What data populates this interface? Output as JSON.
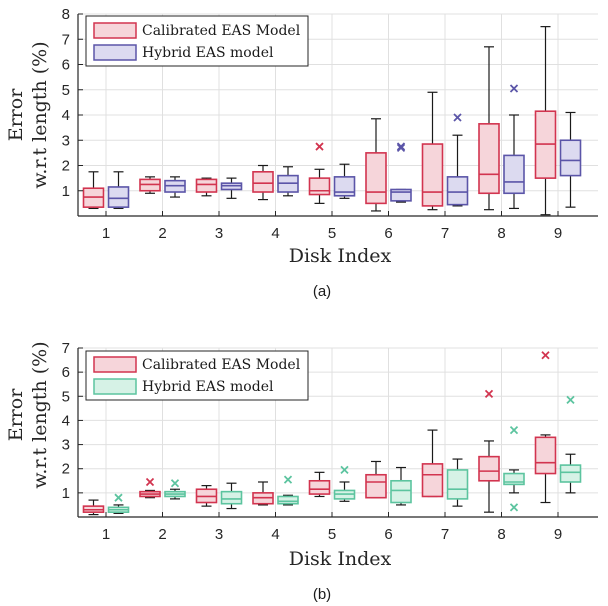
{
  "colors": {
    "calibrated_stroke": "#d2344f",
    "calibrated_fill": "#f6d5da",
    "hybrid_a_stroke": "#5b55a8",
    "hybrid_a_fill": "#dcdaf0",
    "hybrid_b_stroke": "#5cc49f",
    "hybrid_b_fill": "#d6f2e6",
    "whisker": "#1a1a1a",
    "axis": "#262626",
    "grid": "#e0e0e0"
  },
  "chart_data": [
    {
      "type": "box",
      "caption": "(a)",
      "xlabel": "Disk Index",
      "ylabel_line1": "Error",
      "ylabel_line2": "w.r.t length (%)",
      "ylim": [
        0,
        8
      ],
      "yticks": [
        1,
        2,
        3,
        4,
        5,
        6,
        7,
        8
      ],
      "categories": [
        "1",
        "2",
        "3",
        "4",
        "5",
        "6",
        "7",
        "8",
        "9"
      ],
      "grid": true,
      "legend": "top-left",
      "series": [
        {
          "name": "Calibrated EAS Model",
          "color_key": "calibrated",
          "boxes": [
            {
              "min": 0.3,
              "q1": 0.35,
              "median": 0.75,
              "q3": 1.1,
              "max": 1.75,
              "outliers": []
            },
            {
              "min": 0.9,
              "q1": 1.0,
              "median": 1.25,
              "q3": 1.45,
              "max": 1.55,
              "outliers": []
            },
            {
              "min": 0.8,
              "q1": 0.95,
              "median": 1.25,
              "q3": 1.45,
              "max": 1.5,
              "outliers": []
            },
            {
              "min": 0.65,
              "q1": 0.95,
              "median": 1.3,
              "q3": 1.75,
              "max": 2.0,
              "outliers": []
            },
            {
              "min": 0.5,
              "q1": 0.85,
              "median": 1.0,
              "q3": 1.5,
              "max": 1.85,
              "outliers": [
                2.75
              ]
            },
            {
              "min": 0.2,
              "q1": 0.5,
              "median": 0.95,
              "q3": 2.5,
              "max": 3.85,
              "outliers": []
            },
            {
              "min": 0.25,
              "q1": 0.4,
              "median": 0.95,
              "q3": 2.85,
              "max": 4.9,
              "outliers": []
            },
            {
              "min": 0.25,
              "q1": 0.9,
              "median": 1.65,
              "q3": 3.65,
              "max": 6.7,
              "outliers": []
            },
            {
              "min": 0.05,
              "q1": 1.5,
              "median": 2.85,
              "q3": 4.15,
              "max": 7.5,
              "outliers": []
            }
          ]
        },
        {
          "name": "Hybrid EAS model",
          "color_key": "hybrid_a",
          "boxes": [
            {
              "min": 0.3,
              "q1": 0.35,
              "median": 0.7,
              "q3": 1.15,
              "max": 1.75,
              "outliers": []
            },
            {
              "min": 0.75,
              "q1": 0.95,
              "median": 1.2,
              "q3": 1.4,
              "max": 1.55,
              "outliers": []
            },
            {
              "min": 0.7,
              "q1": 1.05,
              "median": 1.2,
              "q3": 1.3,
              "max": 1.5,
              "outliers": []
            },
            {
              "min": 0.8,
              "q1": 0.95,
              "median": 1.3,
              "q3": 1.6,
              "max": 1.95,
              "outliers": []
            },
            {
              "min": 0.7,
              "q1": 0.8,
              "median": 0.95,
              "q3": 1.55,
              "max": 2.05,
              "outliers": []
            },
            {
              "min": 0.55,
              "q1": 0.6,
              "median": 0.95,
              "q3": 1.05,
              "max": 1.05,
              "outliers": [
                2.75,
                2.7
              ]
            },
            {
              "min": 0.4,
              "q1": 0.45,
              "median": 0.95,
              "q3": 1.55,
              "max": 3.2,
              "outliers": [
                3.9
              ]
            },
            {
              "min": 0.3,
              "q1": 0.9,
              "median": 1.35,
              "q3": 2.4,
              "max": 4.0,
              "outliers": [
                5.05
              ]
            },
            {
              "min": 0.35,
              "q1": 1.6,
              "median": 2.2,
              "q3": 3.0,
              "max": 4.1,
              "outliers": []
            }
          ]
        }
      ]
    },
    {
      "type": "box",
      "caption": "(b)",
      "xlabel": "Disk Index",
      "ylabel_line1": "Error",
      "ylabel_line2": "w.r.t length (%)",
      "ylim": [
        0,
        7
      ],
      "yticks": [
        1,
        2,
        3,
        4,
        5,
        6,
        7
      ],
      "categories": [
        "1",
        "2",
        "3",
        "4",
        "5",
        "6",
        "7",
        "8",
        "9"
      ],
      "grid": true,
      "legend": "top-left",
      "series": [
        {
          "name": "Calibrated EAS Model",
          "color_key": "calibrated",
          "boxes": [
            {
              "min": 0.1,
              "q1": 0.2,
              "median": 0.3,
              "q3": 0.45,
              "max": 0.7,
              "outliers": []
            },
            {
              "min": 0.8,
              "q1": 0.85,
              "median": 0.95,
              "q3": 1.05,
              "max": 1.1,
              "outliers": [
                1.45
              ]
            },
            {
              "min": 0.45,
              "q1": 0.6,
              "median": 0.85,
              "q3": 1.15,
              "max": 1.3,
              "outliers": []
            },
            {
              "min": 0.5,
              "q1": 0.55,
              "median": 0.8,
              "q3": 1.0,
              "max": 1.45,
              "outliers": []
            },
            {
              "min": 0.85,
              "q1": 0.95,
              "median": 1.15,
              "q3": 1.5,
              "max": 1.85,
              "outliers": []
            },
            {
              "min": 0.8,
              "q1": 0.8,
              "median": 1.45,
              "q3": 1.75,
              "max": 2.3,
              "outliers": []
            },
            {
              "min": 0.85,
              "q1": 0.85,
              "median": 1.75,
              "q3": 2.2,
              "max": 3.6,
              "outliers": []
            },
            {
              "min": 0.2,
              "q1": 1.5,
              "median": 1.9,
              "q3": 2.5,
              "max": 3.15,
              "outliers": [
                5.1
              ]
            },
            {
              "min": 0.6,
              "q1": 1.8,
              "median": 2.25,
              "q3": 3.3,
              "max": 3.4,
              "outliers": [
                6.7
              ]
            }
          ]
        },
        {
          "name": "Hybrid EAS model",
          "color_key": "hybrid_b",
          "boxes": [
            {
              "min": 0.15,
              "q1": 0.2,
              "median": 0.3,
              "q3": 0.4,
              "max": 0.5,
              "outliers": [
                0.8
              ]
            },
            {
              "min": 0.75,
              "q1": 0.85,
              "median": 0.95,
              "q3": 1.05,
              "max": 1.15,
              "outliers": [
                1.4
              ]
            },
            {
              "min": 0.35,
              "q1": 0.55,
              "median": 0.75,
              "q3": 1.05,
              "max": 1.4,
              "outliers": []
            },
            {
              "min": 0.5,
              "q1": 0.55,
              "median": 0.65,
              "q3": 0.85,
              "max": 0.9,
              "outliers": [
                1.55
              ]
            },
            {
              "min": 0.65,
              "q1": 0.75,
              "median": 0.95,
              "q3": 1.1,
              "max": 1.45,
              "outliers": [
                1.95
              ]
            },
            {
              "min": 0.5,
              "q1": 0.6,
              "median": 1.1,
              "q3": 1.5,
              "max": 2.05,
              "outliers": []
            },
            {
              "min": 0.45,
              "q1": 0.75,
              "median": 1.15,
              "q3": 1.95,
              "max": 2.4,
              "outliers": []
            },
            {
              "min": 1.0,
              "q1": 1.35,
              "median": 1.45,
              "q3": 1.8,
              "max": 1.95,
              "outliers": [
                3.6,
                0.4
              ]
            },
            {
              "min": 1.0,
              "q1": 1.45,
              "median": 1.85,
              "q3": 2.15,
              "max": 2.6,
              "outliers": [
                4.85
              ]
            }
          ]
        }
      ]
    }
  ]
}
